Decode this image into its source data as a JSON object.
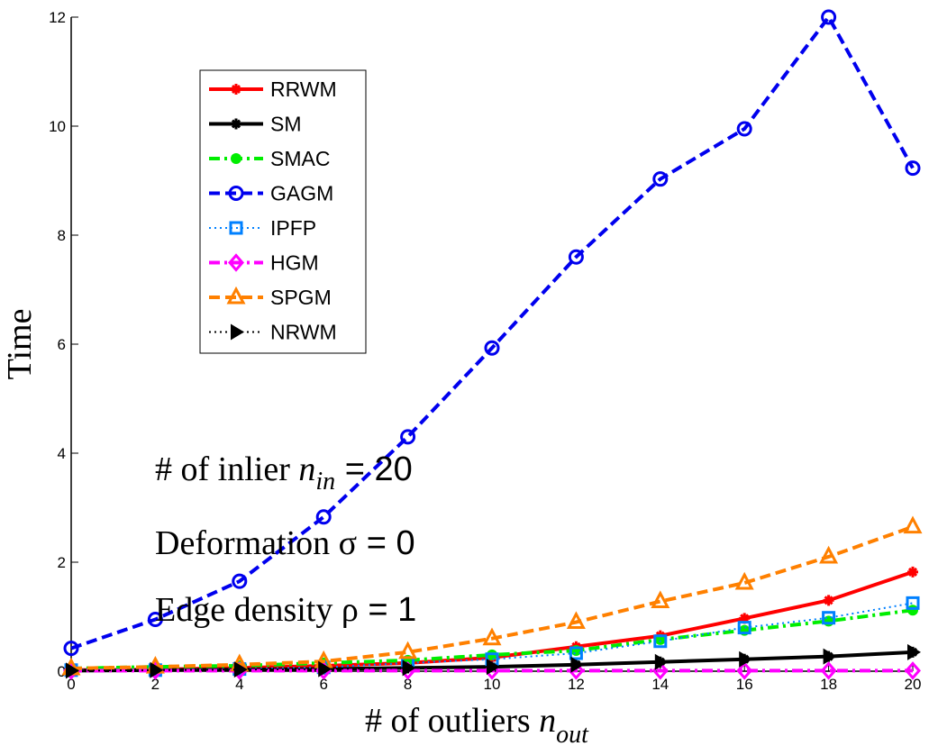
{
  "chart_data": {
    "type": "line",
    "xlabel": "# of outliers n_out",
    "xlabel_main": "# of outliers ",
    "xlabel_var": "n",
    "xlabel_sub": "out",
    "ylabel": "Time",
    "xlim": [
      0,
      20
    ],
    "ylim": [
      0,
      12
    ],
    "xticks": [
      0,
      2,
      4,
      6,
      8,
      10,
      12,
      14,
      16,
      18,
      20
    ],
    "yticks": [
      0,
      2,
      4,
      6,
      8,
      10,
      12
    ],
    "grid": false,
    "legend_placement": "top-left",
    "x": [
      0,
      2,
      4,
      6,
      8,
      10,
      12,
      14,
      16,
      18,
      20
    ],
    "series": [
      {
        "name": "RRWM",
        "color": "#ff0000",
        "dash": "solid",
        "marker": "star",
        "values": [
          0.02,
          0.03,
          0.06,
          0.1,
          0.15,
          0.25,
          0.45,
          0.65,
          0.97,
          1.3,
          1.82
        ]
      },
      {
        "name": "SM",
        "color": "#000000",
        "dash": "solid",
        "marker": "star",
        "values": [
          0.01,
          0.02,
          0.03,
          0.04,
          0.06,
          0.08,
          0.12,
          0.17,
          0.22,
          0.27,
          0.35
        ]
      },
      {
        "name": "SMAC",
        "color": "#00ee00",
        "dash": "dashdot",
        "marker": "circle",
        "values": [
          0.05,
          0.08,
          0.1,
          0.15,
          0.2,
          0.3,
          0.38,
          0.58,
          0.75,
          0.92,
          1.12
        ]
      },
      {
        "name": "GAGM",
        "color": "#0000ee",
        "dash": "dashed",
        "marker": "circle-star",
        "values": [
          0.42,
          0.95,
          1.65,
          2.83,
          4.3,
          5.93,
          7.6,
          9.03,
          9.95,
          12.0,
          9.23
        ]
      },
      {
        "name": "IPFP",
        "color": "#0080ff",
        "dash": "dotted",
        "marker": "square",
        "values": [
          0.02,
          0.02,
          0.04,
          0.07,
          0.15,
          0.22,
          0.33,
          0.55,
          0.8,
          0.98,
          1.25
        ]
      },
      {
        "name": "HGM",
        "color": "#ff00ff",
        "dash": "dashdot",
        "marker": "diamond",
        "values": [
          0.01,
          0.01,
          0.01,
          0.01,
          0.01,
          0.01,
          0.01,
          0.01,
          0.01,
          0.01,
          0.01
        ]
      },
      {
        "name": "SPGM",
        "color": "#ff8000",
        "dash": "dashed",
        "marker": "triangle",
        "values": [
          0.05,
          0.08,
          0.12,
          0.18,
          0.35,
          0.6,
          0.9,
          1.28,
          1.62,
          2.1,
          2.65
        ]
      },
      {
        "name": "NRWM",
        "color": "#000000",
        "dash": "dotted",
        "marker": "triangle-right",
        "values": [
          0.01,
          0.02,
          0.03,
          0.04,
          0.06,
          0.08,
          0.12,
          0.17,
          0.22,
          0.27,
          0.35
        ]
      }
    ],
    "annotations": {
      "inlier_pre": "# of inlier ",
      "inlier_var": "n",
      "inlier_sub": "in",
      "inlier_post": " = 20",
      "deform_pre": "Deformation ",
      "deform_sym": "σ",
      "deform_post": " = 0",
      "edge_pre": "Edge density ",
      "edge_sym": "ρ",
      "edge_post": " = 1"
    }
  }
}
